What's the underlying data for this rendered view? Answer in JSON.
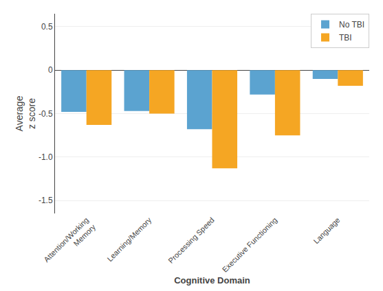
{
  "chart_data": {
    "type": "bar",
    "categories": [
      "Attention/Working\nMemory",
      "Learning/Memory",
      "Processing Speed",
      "Executive Functioning",
      "Language"
    ],
    "series": [
      {
        "name": "No TBI",
        "color": "#5BA3D0",
        "values": [
          -0.48,
          -0.47,
          -0.68,
          -0.28,
          -0.1
        ]
      },
      {
        "name": "TBI",
        "color": "#F5A623",
        "values": [
          -0.63,
          -0.5,
          -1.13,
          -0.75,
          -0.18
        ]
      }
    ],
    "xlabel": "Cognitive Domain",
    "ylabel": "Average\nz score",
    "ylim": [
      -1.65,
      0.65
    ],
    "yticks": [
      0.5,
      0,
      -0.5,
      {
        "value": -1,
        "label": "-1.0"
      },
      -1.5
    ],
    "grid": true,
    "legend": "upper right"
  }
}
